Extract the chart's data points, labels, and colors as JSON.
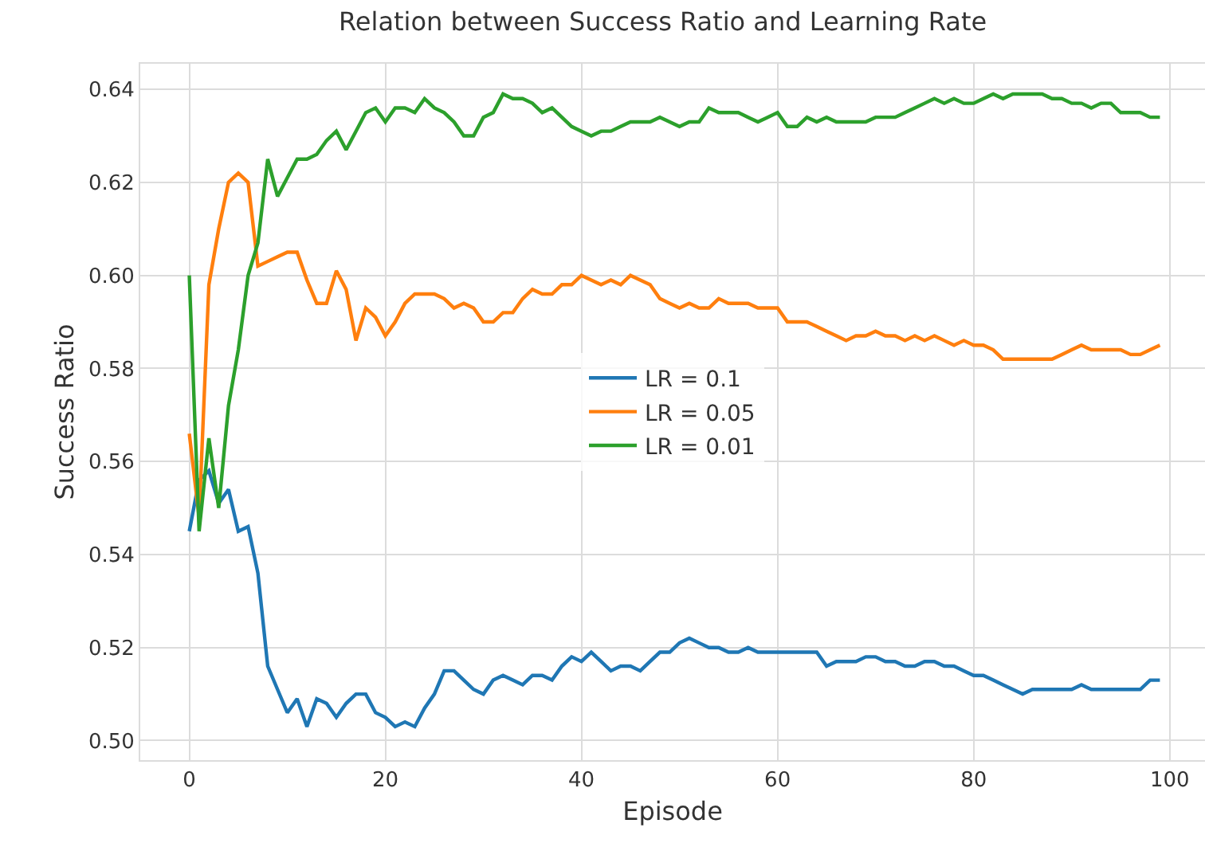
{
  "chart_data": {
    "type": "line",
    "title": "Relation between Success Ratio and Learning Rate",
    "xlabel": "Episode",
    "ylabel": "Success Ratio",
    "x": [
      0,
      1,
      2,
      3,
      4,
      5,
      6,
      7,
      8,
      9,
      10,
      11,
      12,
      13,
      14,
      15,
      16,
      17,
      18,
      19,
      20,
      21,
      22,
      23,
      24,
      25,
      26,
      27,
      28,
      29,
      30,
      31,
      32,
      33,
      34,
      35,
      36,
      37,
      38,
      39,
      40,
      41,
      42,
      43,
      44,
      45,
      46,
      47,
      48,
      49,
      50,
      51,
      52,
      53,
      54,
      55,
      56,
      57,
      58,
      59,
      60,
      61,
      62,
      63,
      64,
      65,
      66,
      67,
      68,
      69,
      70,
      71,
      72,
      73,
      74,
      75,
      76,
      77,
      78,
      79,
      80,
      81,
      82,
      83,
      84,
      85,
      86,
      87,
      88,
      89,
      90,
      91,
      92,
      93,
      94,
      95,
      96,
      97,
      98,
      99
    ],
    "series": [
      {
        "name": "LR = 0.1",
        "color": "#1f77b4",
        "values": [
          0.545,
          0.556,
          0.558,
          0.551,
          0.554,
          0.545,
          0.546,
          0.536,
          0.516,
          0.511,
          0.506,
          0.509,
          0.503,
          0.509,
          0.508,
          0.505,
          0.508,
          0.51,
          0.51,
          0.506,
          0.505,
          0.503,
          0.504,
          0.503,
          0.507,
          0.51,
          0.515,
          0.515,
          0.513,
          0.511,
          0.51,
          0.513,
          0.514,
          0.513,
          0.512,
          0.514,
          0.514,
          0.513,
          0.516,
          0.518,
          0.517,
          0.519,
          0.517,
          0.515,
          0.516,
          0.516,
          0.515,
          0.517,
          0.519,
          0.519,
          0.521,
          0.522,
          0.521,
          0.52,
          0.52,
          0.519,
          0.519,
          0.52,
          0.519,
          0.519,
          0.519,
          0.519,
          0.519,
          0.519,
          0.519,
          0.516,
          0.517,
          0.517,
          0.517,
          0.518,
          0.518,
          0.517,
          0.517,
          0.516,
          0.516,
          0.517,
          0.517,
          0.516,
          0.516,
          0.515,
          0.514,
          0.514,
          0.513,
          0.512,
          0.511,
          0.51,
          0.511,
          0.511,
          0.511,
          0.511,
          0.511,
          0.512,
          0.511,
          0.511,
          0.511,
          0.511,
          0.511,
          0.511,
          0.513,
          0.513
        ]
      },
      {
        "name": "LR = 0.05",
        "color": "#ff7f0e",
        "values": [
          0.566,
          0.548,
          0.598,
          0.61,
          0.62,
          0.622,
          0.62,
          0.602,
          0.603,
          0.604,
          0.605,
          0.605,
          0.599,
          0.594,
          0.594,
          0.601,
          0.597,
          0.586,
          0.593,
          0.591,
          0.587,
          0.59,
          0.594,
          0.596,
          0.596,
          0.596,
          0.595,
          0.593,
          0.594,
          0.593,
          0.59,
          0.59,
          0.592,
          0.592,
          0.595,
          0.597,
          0.596,
          0.596,
          0.598,
          0.598,
          0.6,
          0.599,
          0.598,
          0.599,
          0.598,
          0.6,
          0.599,
          0.598,
          0.595,
          0.594,
          0.593,
          0.594,
          0.593,
          0.593,
          0.595,
          0.594,
          0.594,
          0.594,
          0.593,
          0.593,
          0.593,
          0.59,
          0.59,
          0.59,
          0.589,
          0.588,
          0.587,
          0.586,
          0.587,
          0.587,
          0.588,
          0.587,
          0.587,
          0.586,
          0.587,
          0.586,
          0.587,
          0.586,
          0.585,
          0.586,
          0.585,
          0.585,
          0.584,
          0.582,
          0.582,
          0.582,
          0.582,
          0.582,
          0.582,
          0.583,
          0.584,
          0.585,
          0.584,
          0.584,
          0.584,
          0.584,
          0.583,
          0.583,
          0.584,
          0.585
        ]
      },
      {
        "name": "LR = 0.01",
        "color": "#2ca02c",
        "values": [
          0.6,
          0.545,
          0.565,
          0.55,
          0.572,
          0.584,
          0.6,
          0.607,
          0.625,
          0.617,
          0.621,
          0.625,
          0.625,
          0.626,
          0.629,
          0.631,
          0.627,
          0.631,
          0.635,
          0.636,
          0.633,
          0.636,
          0.636,
          0.635,
          0.638,
          0.636,
          0.635,
          0.633,
          0.63,
          0.63,
          0.634,
          0.635,
          0.639,
          0.638,
          0.638,
          0.637,
          0.635,
          0.636,
          0.634,
          0.632,
          0.631,
          0.63,
          0.631,
          0.631,
          0.632,
          0.633,
          0.633,
          0.633,
          0.634,
          0.633,
          0.632,
          0.633,
          0.633,
          0.636,
          0.635,
          0.635,
          0.635,
          0.634,
          0.633,
          0.634,
          0.635,
          0.632,
          0.632,
          0.634,
          0.633,
          0.634,
          0.633,
          0.633,
          0.633,
          0.633,
          0.634,
          0.634,
          0.634,
          0.635,
          0.636,
          0.637,
          0.638,
          0.637,
          0.638,
          0.637,
          0.637,
          0.638,
          0.639,
          0.638,
          0.639,
          0.639,
          0.639,
          0.639,
          0.638,
          0.638,
          0.637,
          0.637,
          0.636,
          0.637,
          0.637,
          0.635,
          0.635,
          0.635,
          0.634,
          0.634
        ]
      }
    ],
    "xlim": [
      -5,
      103.6
    ],
    "xticks": [
      0,
      20,
      40,
      60,
      80,
      100
    ],
    "ylim": [
      0.4958,
      0.6455
    ],
    "yticks": [
      {
        "value": 0.5,
        "label": "0.50"
      },
      0.52,
      0.54,
      0.56,
      0.58,
      {
        "value": 0.6,
        "label": "0.60"
      },
      0.62,
      0.64
    ],
    "grid": true,
    "legend": "center",
    "marker": "none",
    "line_style": "solid"
  }
}
